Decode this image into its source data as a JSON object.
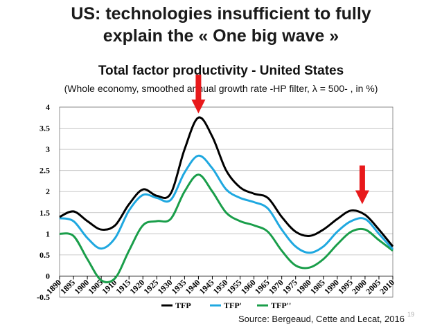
{
  "slide": {
    "title_line1": "US: technologies insufficient to fully",
    "title_line2": "explain the « One big wave »",
    "source": "Source: Bergeaud, Cette and Lecat, 2016",
    "page_number": "19"
  },
  "colors": {
    "tfp": "#000000",
    "tfp_prime": "#1fa8e0",
    "tfp_double_prime": "#1a9e4a",
    "arrow": "#e8191b"
  },
  "chart_data": {
    "type": "line",
    "title": "Total factor productivity - United States",
    "subtitle": "(Whole economy, smoothed annual  growth rate -HP filter, λ = 500- , in %)",
    "xlabel": "",
    "ylabel": "",
    "xlim": [
      1890,
      2010
    ],
    "ylim": [
      -0.5,
      4
    ],
    "y_ticks": [
      "-0.5",
      "0",
      "0.5",
      "1",
      "1.5",
      "2",
      "2.5",
      "3",
      "3.5",
      "4"
    ],
    "x_ticks": [
      "1890",
      "1895",
      "1900",
      "1905",
      "1910",
      "1915",
      "1920",
      "1925",
      "1930",
      "1935",
      "1940",
      "1945",
      "1950",
      "1955",
      "1960",
      "1965",
      "1970",
      "1975",
      "1980",
      "1985",
      "1990",
      "1995",
      "2000",
      "2005",
      "2010"
    ],
    "x": [
      1890,
      1895,
      1900,
      1905,
      1910,
      1915,
      1920,
      1925,
      1930,
      1935,
      1940,
      1945,
      1950,
      1955,
      1960,
      1965,
      1970,
      1975,
      1980,
      1985,
      1990,
      1995,
      2000,
      2005,
      2010
    ],
    "series": [
      {
        "name": "TFP",
        "values": [
          1.4,
          1.53,
          1.3,
          1.1,
          1.2,
          1.7,
          2.05,
          1.9,
          1.95,
          3.0,
          3.75,
          3.3,
          2.5,
          2.1,
          1.95,
          1.85,
          1.4,
          1.05,
          0.95,
          1.1,
          1.35,
          1.55,
          1.45,
          1.1,
          0.7
        ]
      },
      {
        "name": "TFP'",
        "values": [
          1.37,
          1.3,
          0.9,
          0.65,
          0.9,
          1.55,
          1.92,
          1.85,
          1.8,
          2.45,
          2.85,
          2.55,
          2.05,
          1.85,
          1.75,
          1.6,
          1.1,
          0.7,
          0.55,
          0.7,
          1.05,
          1.3,
          1.35,
          1.0,
          0.63
        ]
      },
      {
        "name": "TFP''",
        "values": [
          1.0,
          0.95,
          0.4,
          -0.1,
          -0.05,
          0.6,
          1.2,
          1.3,
          1.35,
          2.0,
          2.4,
          2.0,
          1.5,
          1.3,
          1.2,
          1.05,
          0.6,
          0.25,
          0.2,
          0.4,
          0.75,
          1.05,
          1.1,
          0.85,
          0.6
        ]
      }
    ],
    "legend": [
      "TFP",
      "TFP'",
      "TFP''"
    ],
    "legend_position": "bottom",
    "annotations": [
      {
        "type": "arrow-down",
        "x": 1940,
        "y_tip": 3.85
      },
      {
        "type": "arrow-down",
        "x": 1999,
        "y_tip": 1.7
      }
    ]
  }
}
